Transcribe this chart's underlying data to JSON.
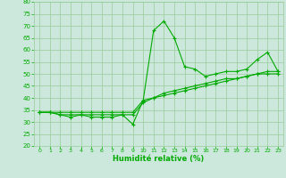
{
  "x": [
    0,
    1,
    2,
    3,
    4,
    5,
    6,
    7,
    8,
    9,
    10,
    11,
    12,
    13,
    14,
    15,
    16,
    17,
    18,
    19,
    20,
    21,
    22,
    23
  ],
  "line1": [
    34,
    34,
    33,
    32,
    33,
    32,
    32,
    32,
    33,
    29,
    39,
    68,
    72,
    65,
    53,
    52,
    49,
    50,
    51,
    51,
    52,
    56,
    59,
    51
  ],
  "line2": [
    34,
    34,
    33,
    33,
    33,
    33,
    33,
    33,
    33,
    33,
    38,
    40,
    42,
    43,
    44,
    45,
    46,
    47,
    48,
    48,
    49,
    50,
    51,
    51
  ],
  "line3": [
    34,
    34,
    34,
    34,
    34,
    34,
    34,
    34,
    34,
    34,
    39,
    40,
    41,
    42,
    43,
    44,
    45,
    46,
    47,
    48,
    49,
    50,
    50,
    50
  ],
  "line_color": "#00aa00",
  "bg_color": "#cce8dc",
  "grid_color": "#99cc99",
  "xlabel": "Humidité relative (%)",
  "xlabel_color": "#00aa00",
  "ylim": [
    20,
    80
  ],
  "xlim": [
    -0.5,
    23.5
  ],
  "yticks": [
    20,
    25,
    30,
    35,
    40,
    45,
    50,
    55,
    60,
    65,
    70,
    75,
    80
  ],
  "xticks": [
    0,
    1,
    2,
    3,
    4,
    5,
    6,
    7,
    8,
    9,
    10,
    11,
    12,
    13,
    14,
    15,
    16,
    17,
    18,
    19,
    20,
    21,
    22,
    23
  ]
}
